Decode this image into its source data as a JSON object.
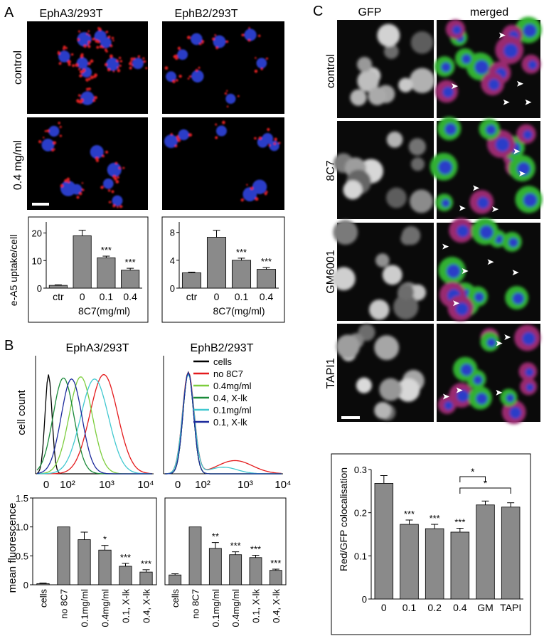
{
  "panel_letters": {
    "a": "A",
    "b": "B",
    "c": "C"
  },
  "panel_a": {
    "col_titles": [
      "EphA3/293T",
      "EphB2/293T"
    ],
    "row_labels": [
      "control",
      "0.4 mg/ml"
    ],
    "ylabel": "e-A5 uptake/cell",
    "xlabel": "8C7(mg/ml)"
  },
  "panel_b": {
    "hist_titles": [
      "EphA3/293T",
      "EphB2/293T"
    ],
    "hist_ylabel": "cell count",
    "hist_xticks": [
      "0",
      "10²",
      "10³",
      "10⁴"
    ],
    "legend": [
      {
        "label": "cells",
        "color": "#000000"
      },
      {
        "label": "no 8C7",
        "color": "#e41a1c"
      },
      {
        "label": "0.4mg/ml",
        "color": "#7ccd3c"
      },
      {
        "label": "0.4, X-lk",
        "color": "#1a8a3a"
      },
      {
        "label": "0.1mg/ml",
        "color": "#40c8d0"
      },
      {
        "label": "0.1, X-lk",
        "color": "#1c2a9c"
      }
    ],
    "bar_ylabel": "mean fluorescence"
  },
  "panel_c": {
    "col_titles": [
      "GFP",
      "merged"
    ],
    "row_labels": [
      "control",
      "8C7",
      "GM6001",
      "TAPI1"
    ],
    "ylabel": "Red/GFP colocalisation"
  },
  "chart_data": [
    {
      "type": "bar",
      "categories": [
        "ctr",
        "0",
        "0.1",
        "0.4"
      ],
      "values": [
        1,
        19,
        11,
        6.5
      ],
      "errors": [
        0.2,
        2,
        0.6,
        0.7
      ],
      "significance": [
        "",
        "",
        "***",
        "***"
      ],
      "ylabel": "e-A5 uptake/cell",
      "xlabel": "8C7(mg/ml)",
      "yticks": [
        0,
        10,
        20
      ],
      "ylim": [
        0,
        24
      ]
    },
    {
      "type": "bar",
      "categories": [
        "ctr",
        "0",
        "0.1",
        "0.4"
      ],
      "values": [
        2.2,
        7.3,
        4.0,
        2.7
      ],
      "errors": [
        0.1,
        1.0,
        0.3,
        0.25
      ],
      "significance": [
        "",
        "",
        "***",
        "***"
      ],
      "ylabel": "",
      "xlabel": "8C7(mg/ml)",
      "yticks": [
        0,
        4,
        8
      ],
      "ylim": [
        0,
        9.5
      ]
    },
    {
      "type": "bar",
      "categories": [
        "cells",
        "no 8C7",
        "0.1mg/ml",
        "0.4mg/ml",
        "0.1, X-lk",
        "0.4, X-lk"
      ],
      "values": [
        0.02,
        1.0,
        0.78,
        0.6,
        0.32,
        0.22
      ],
      "errors": [
        0.01,
        0,
        0.13,
        0.08,
        0.05,
        0.04
      ],
      "significance": [
        "",
        "",
        "",
        "*",
        "***",
        "***"
      ],
      "ylabel": "mean fluorescence",
      "yticks": [
        0,
        0.5,
        1.0,
        1.5
      ],
      "ytick_labels": [
        "0",
        "0.5",
        "1.0",
        "1.5"
      ],
      "ylim": [
        0,
        1.5
      ]
    },
    {
      "type": "bar",
      "categories": [
        "cells",
        "no 8C7",
        "0.1mg/ml",
        "0.4mg/ml",
        "0.1, X-lk",
        "0.4, X-lk"
      ],
      "values": [
        0.17,
        1.0,
        0.63,
        0.52,
        0.47,
        0.25
      ],
      "errors": [
        0.02,
        0,
        0.1,
        0.05,
        0.04,
        0.02
      ],
      "significance": [
        "",
        "",
        "**",
        "***",
        "***",
        "***"
      ],
      "ylim": [
        0,
        1.5
      ]
    },
    {
      "type": "bar",
      "categories": [
        "0",
        "0.1",
        "0.2",
        "0.4",
        "GM",
        "TAPI"
      ],
      "values": [
        0.268,
        0.173,
        0.163,
        0.155,
        0.218,
        0.213
      ],
      "errors": [
        0.018,
        0.01,
        0.01,
        0.009,
        0.009,
        0.01
      ],
      "significance": [
        "",
        "***",
        "***",
        "***",
        "",
        ""
      ],
      "comparisons": [
        {
          "from": "0.4",
          "to": "GM",
          "label": "*"
        },
        {
          "from": "0.4",
          "to": "TAPI",
          "label": "*"
        }
      ],
      "ylabel": "Red/GFP colocalisation",
      "yticks": [
        0,
        0.1,
        0.2,
        0.3
      ],
      "ytick_labels": [
        "0",
        "0.1",
        "0.2",
        "0.3"
      ],
      "ylim": [
        0,
        0.3
      ]
    }
  ]
}
